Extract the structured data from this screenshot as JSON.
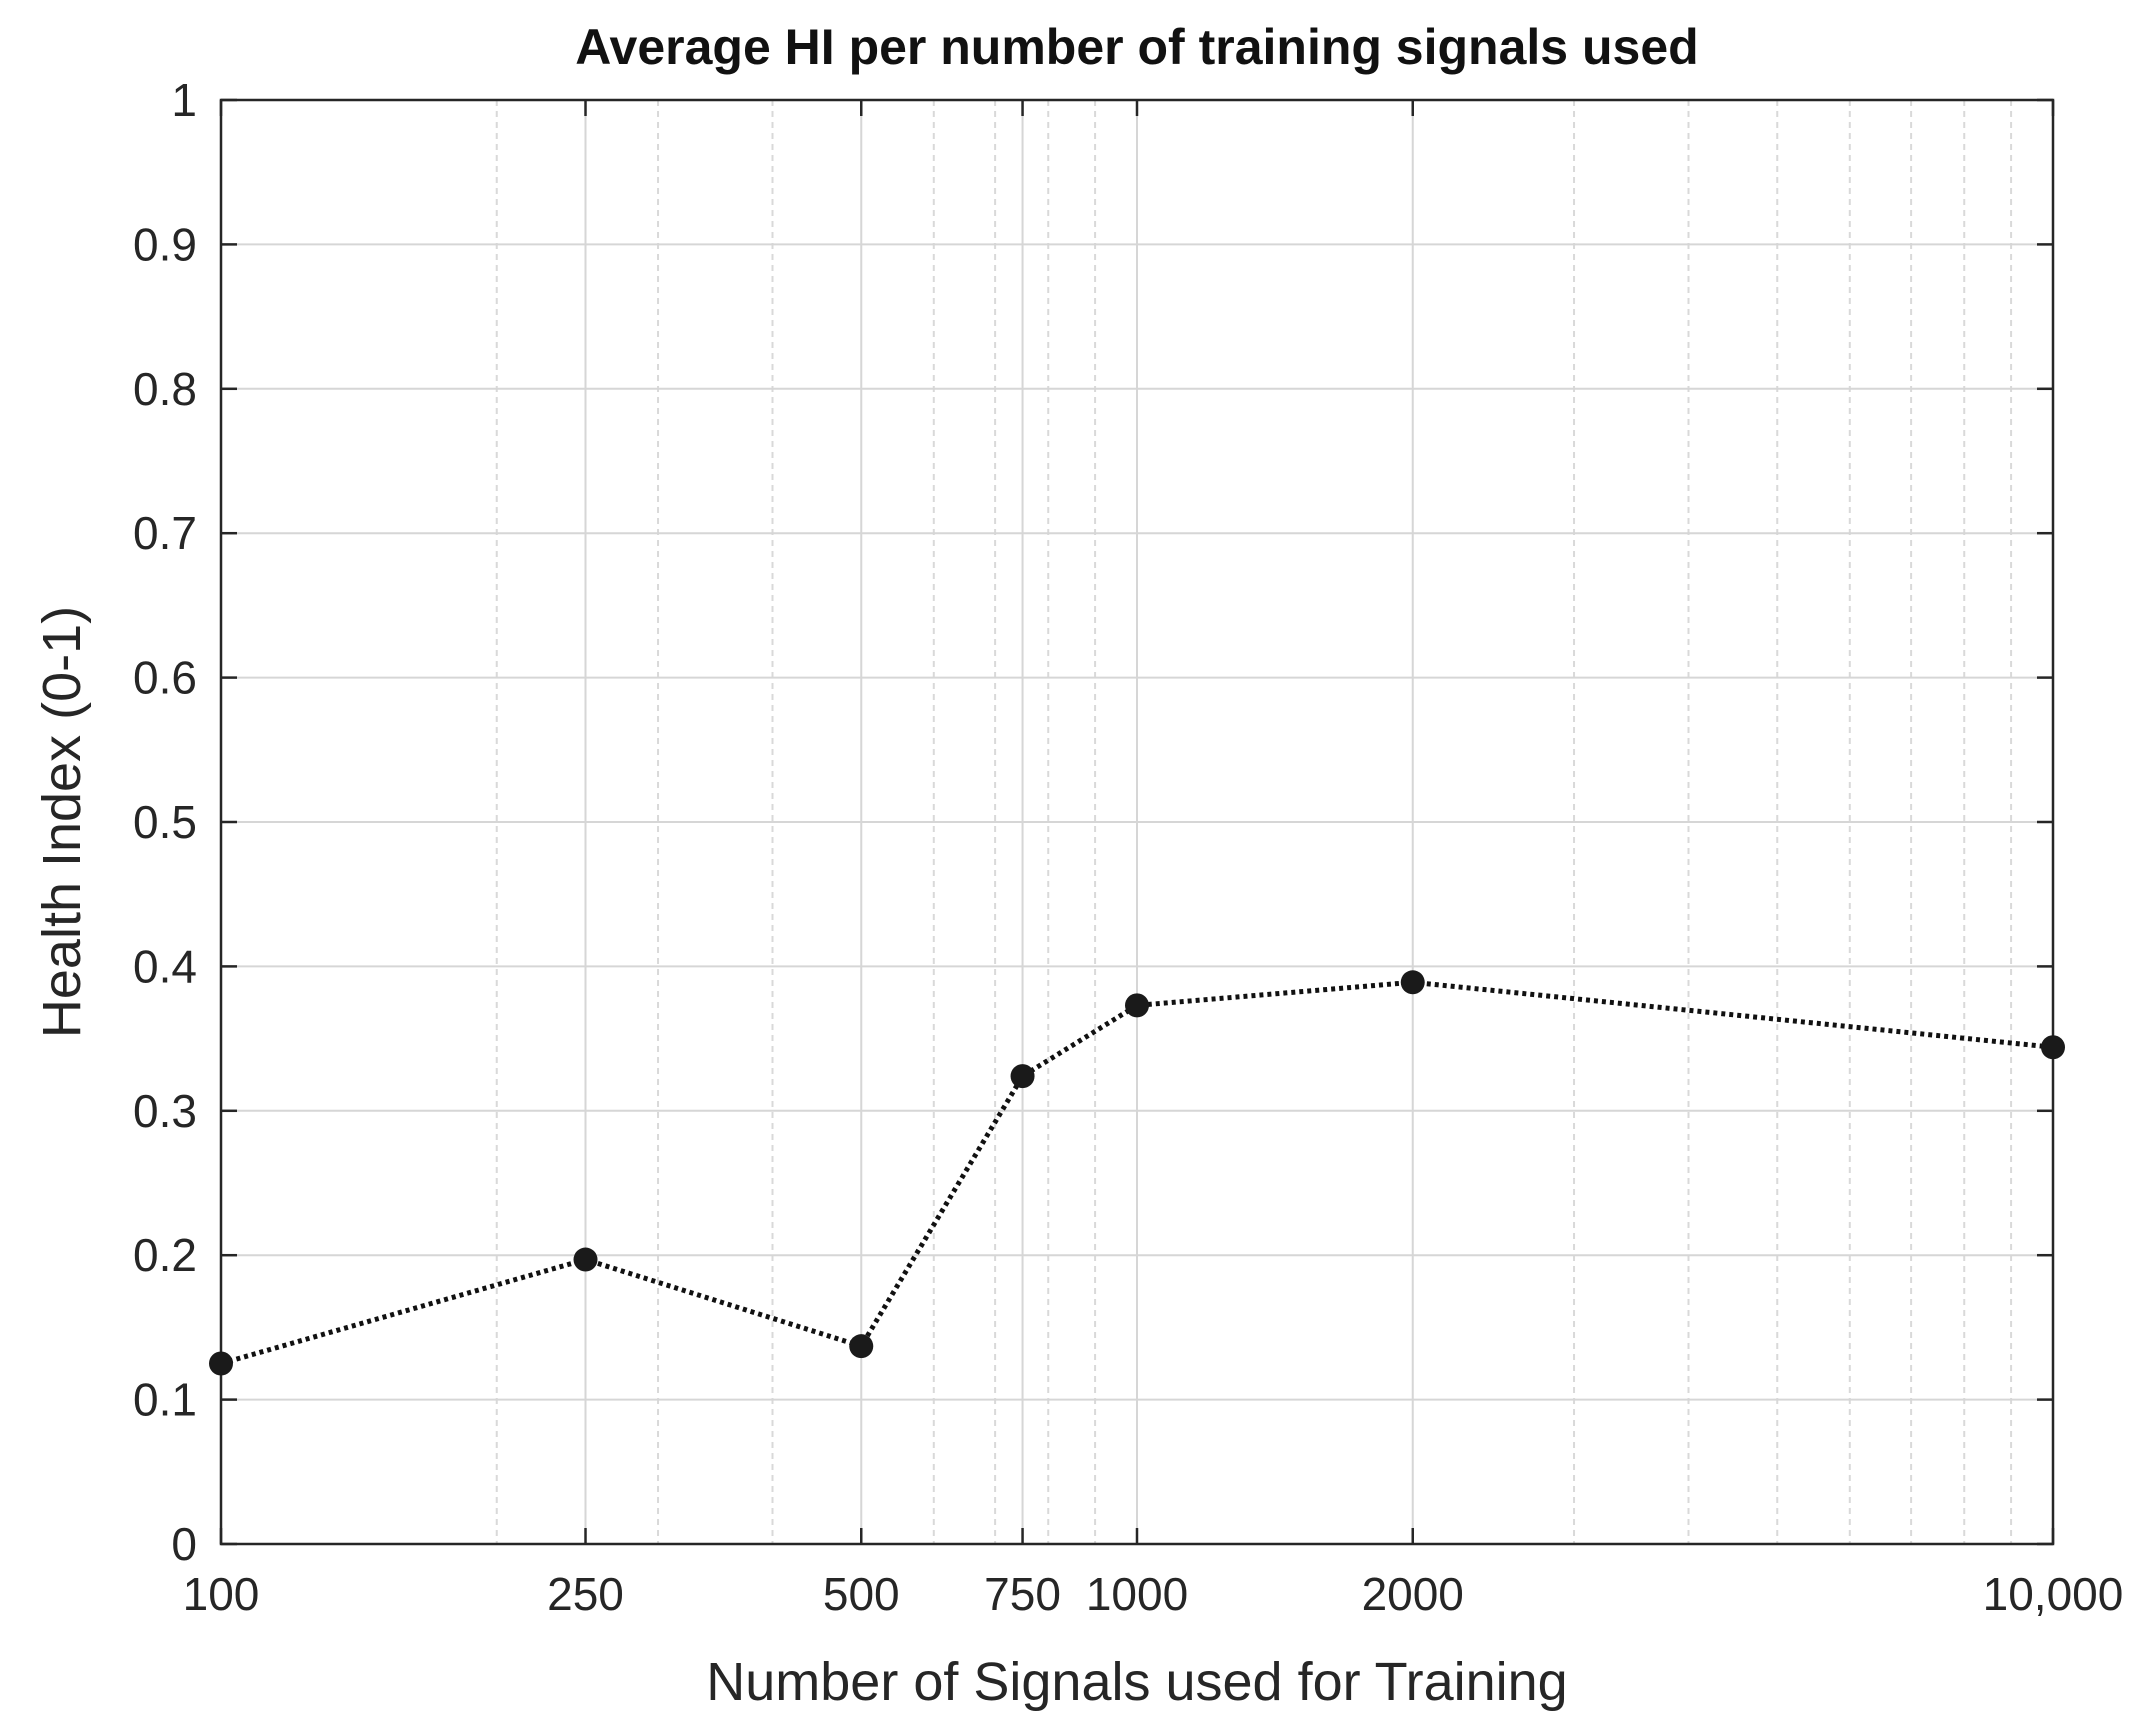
{
  "chart_data": {
    "type": "line",
    "title": "Average HI per number of training signals used",
    "xlabel": "Number of Signals used for Training",
    "ylabel": "Health Index (0-1)",
    "x_scale": "log",
    "xlim": [
      100,
      10000
    ],
    "ylim": [
      0,
      1
    ],
    "grid": true,
    "x_ticks": [
      {
        "value": 100,
        "label": "100"
      },
      {
        "value": 250,
        "label": "250"
      },
      {
        "value": 500,
        "label": "500"
      },
      {
        "value": 750,
        "label": "750"
      },
      {
        "value": 1000,
        "label": "1000"
      },
      {
        "value": 2000,
        "label": "2000"
      },
      {
        "value": 10000,
        "label": "10,000"
      }
    ],
    "y_ticks": [
      {
        "value": 0,
        "label": "0"
      },
      {
        "value": 0.1,
        "label": "0.1"
      },
      {
        "value": 0.2,
        "label": "0.2"
      },
      {
        "value": 0.3,
        "label": "0.3"
      },
      {
        "value": 0.4,
        "label": "0.4"
      },
      {
        "value": 0.5,
        "label": "0.5"
      },
      {
        "value": 0.6,
        "label": "0.6"
      },
      {
        "value": 0.7,
        "label": "0.7"
      },
      {
        "value": 0.8,
        "label": "0.8"
      },
      {
        "value": 0.9,
        "label": "0.9"
      },
      {
        "value": 1,
        "label": "1"
      }
    ],
    "series": [
      {
        "x": [
          100,
          250,
          500,
          750,
          1000,
          2000,
          10000
        ],
        "y": [
          0.125,
          0.197,
          0.137,
          0.324,
          0.373,
          0.389,
          0.344
        ]
      }
    ],
    "colors": {
      "line": "#111111",
      "marker": "#1a1a1a",
      "major_grid": "#d6d6d6",
      "minor_grid": "#d9d9d9",
      "axes": "#262626"
    }
  }
}
